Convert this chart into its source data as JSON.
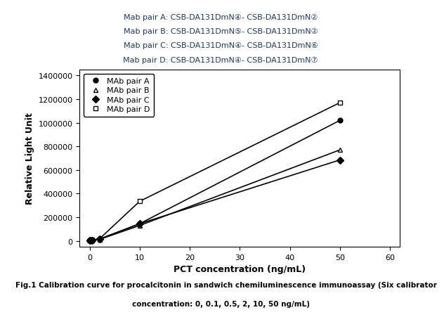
{
  "header_lines": [
    "Mab pair A: CSB-DA131DmN④- CSB-DA131DmN②",
    "Mab pair B: CSB-DA131DmN⑤- CSB-DA131DmN②",
    "Mab pair C: CSB-DA131DmN④- CSB-DA131DmN⑥",
    "Mab pair D: CSB-DA131DmN④- CSB-DA131DmN⑦"
  ],
  "x": [
    0,
    0.1,
    0.5,
    2,
    10,
    50
  ],
  "pair_A": [
    2000,
    3000,
    5000,
    15000,
    145000,
    1020000
  ],
  "pair_B": [
    2000,
    3000,
    5000,
    12000,
    130000,
    770000
  ],
  "pair_C": [
    2000,
    3000,
    6000,
    14000,
    145000,
    685000
  ],
  "pair_D": [
    2000,
    4000,
    7000,
    18000,
    335000,
    1170000
  ],
  "xlabel": "PCT concentration (ng/mL)",
  "ylabel": "Relative Light Unit",
  "xlim": [
    -2,
    62
  ],
  "ylim": [
    -50000,
    1450000
  ],
  "yticks": [
    0,
    200000,
    400000,
    600000,
    800000,
    1000000,
    1200000,
    1400000
  ],
  "xticks": [
    0,
    10,
    20,
    30,
    40,
    50,
    60
  ],
  "legend_labels": [
    "MAb pair A",
    "MAb pair B",
    "MAb pair C",
    "MAb pair D"
  ],
  "caption_line1": "Fig.1 Calibration curve for procalcitonin in sandwich chemiluminescence immunoassay (Six calibrator",
  "caption_line2": "concentration: 0, 0.1, 0.5, 2, 10, 50 ng/mL)",
  "text_color": "#1f3864",
  "line_color": "#000000",
  "bg_color": "#ffffff"
}
